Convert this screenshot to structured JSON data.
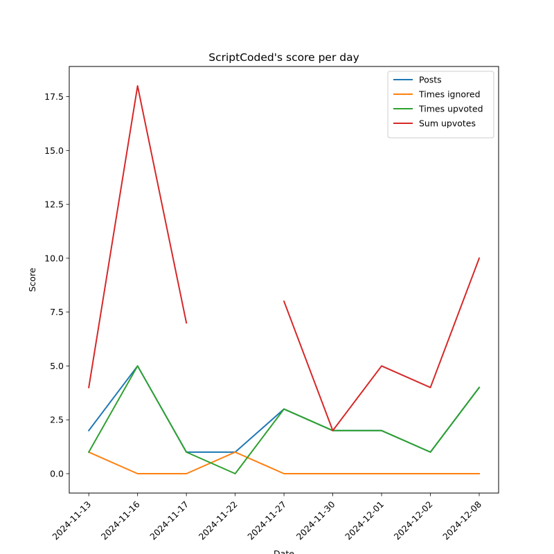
{
  "chart_data": {
    "type": "line",
    "title": "ScriptCoded's score per day",
    "xlabel": "Date",
    "ylabel": "Score",
    "categories": [
      "2024-11-13",
      "2024-11-16",
      "2024-11-17",
      "2024-11-22",
      "2024-11-27",
      "2024-11-30",
      "2024-12-01",
      "2024-12-02",
      "2024-12-08"
    ],
    "ylim": [
      -0.9,
      18.9
    ],
    "yticks": [
      0.0,
      2.5,
      5.0,
      7.5,
      10.0,
      12.5,
      15.0,
      17.5
    ],
    "ytick_labels": [
      "0.0",
      "2.5",
      "5.0",
      "7.5",
      "10.0",
      "12.5",
      "15.0",
      "17.5"
    ],
    "grid": false,
    "legend_position": "top-right",
    "series": [
      {
        "name": "Posts",
        "color": "#1f77b4",
        "values": [
          2,
          5,
          1,
          1,
          3,
          2,
          2,
          1,
          4
        ]
      },
      {
        "name": "Times ignored",
        "color": "#ff7f0e",
        "values": [
          1,
          0,
          0,
          1,
          0,
          0,
          0,
          0,
          0
        ]
      },
      {
        "name": "Times upvoted",
        "color": "#2ca02c",
        "values": [
          1,
          5,
          1,
          0,
          3,
          2,
          2,
          1,
          4
        ]
      },
      {
        "name": "Sum upvotes",
        "color": "#d62728",
        "values": [
          4,
          18,
          7,
          null,
          8,
          2,
          5,
          4,
          10
        ]
      }
    ]
  }
}
